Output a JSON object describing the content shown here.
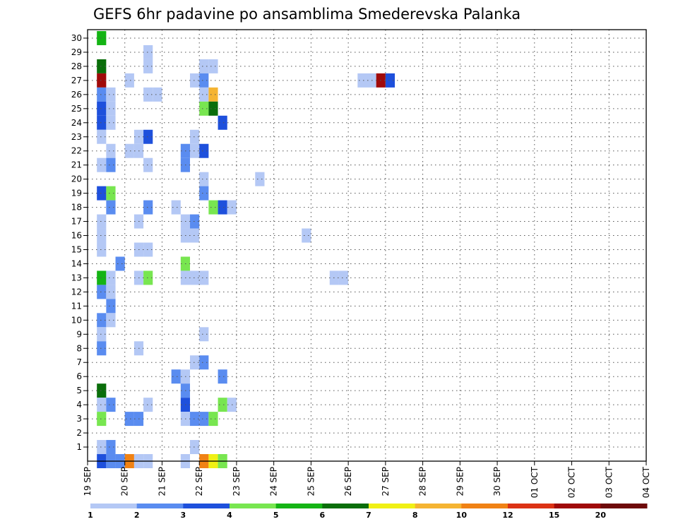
{
  "chart_data": {
    "type": "heatmap",
    "title": "GEFS 6hr padavine po ansamblima Smederevska Palanka",
    "xlabel": "",
    "ylabel": "",
    "x_tick_labels": [
      "19 SEP",
      "20 SEP",
      "21 SEP",
      "22 SEP",
      "23 SEP",
      "24 SEP",
      "25 SEP",
      "26 SEP",
      "27 SEP",
      "28 SEP",
      "29 SEP",
      "30 SEP",
      "01 OCT",
      "02 OCT",
      "03 OCT",
      "04 OCT"
    ],
    "y_tick_labels": [
      "1",
      "2",
      "3",
      "4",
      "5",
      "6",
      "7",
      "8",
      "9",
      "10",
      "11",
      "12",
      "13",
      "14",
      "15",
      "16",
      "17",
      "18",
      "19",
      "20",
      "21",
      "22",
      "23",
      "24",
      "25",
      "26",
      "27",
      "28",
      "29",
      "30"
    ],
    "y_range": [
      0,
      30
    ],
    "steps_per_day": 4,
    "grid": true,
    "colorbar": {
      "labels": [
        "1",
        "2",
        "3",
        "4",
        "5",
        "6",
        "7",
        "8",
        "10",
        "12",
        "15",
        "20"
      ],
      "colors": [
        "#b4c8f5",
        "#5a8cf0",
        "#1e50dc",
        "#78e650",
        "#14b414",
        "#0a6e0a",
        "#f0f014",
        "#f5b432",
        "#f08214",
        "#dc3214",
        "#a00a0a",
        "#6e0a0a"
      ]
    },
    "cells": [
      [
        30,
        1,
        5
      ],
      [
        29,
        6,
        1
      ],
      [
        28,
        1,
        6
      ],
      [
        28,
        6,
        1
      ],
      [
        28,
        12,
        1
      ],
      [
        28,
        13,
        1
      ],
      [
        27,
        1,
        11
      ],
      [
        27,
        4,
        1
      ],
      [
        27,
        11,
        1
      ],
      [
        27,
        12,
        2
      ],
      [
        27,
        29,
        1
      ],
      [
        27,
        30,
        1
      ],
      [
        27,
        31,
        11
      ],
      [
        27,
        32,
        3
      ],
      [
        26,
        1,
        2
      ],
      [
        26,
        2,
        1
      ],
      [
        26,
        6,
        1
      ],
      [
        26,
        7,
        1
      ],
      [
        26,
        12,
        1
      ],
      [
        26,
        13,
        8
      ],
      [
        25,
        1,
        3
      ],
      [
        25,
        2,
        1
      ],
      [
        25,
        12,
        4
      ],
      [
        25,
        13,
        6
      ],
      [
        24,
        1,
        3
      ],
      [
        24,
        2,
        1
      ],
      [
        24,
        14,
        3
      ],
      [
        23,
        1,
        1
      ],
      [
        23,
        5,
        1
      ],
      [
        23,
        6,
        3
      ],
      [
        23,
        11,
        1
      ],
      [
        22,
        2,
        1
      ],
      [
        22,
        4,
        1
      ],
      [
        22,
        5,
        1
      ],
      [
        22,
        10,
        2
      ],
      [
        22,
        11,
        1
      ],
      [
        22,
        12,
        3
      ],
      [
        21,
        1,
        1
      ],
      [
        21,
        2,
        2
      ],
      [
        21,
        6,
        1
      ],
      [
        21,
        10,
        2
      ],
      [
        20,
        12,
        1
      ],
      [
        20,
        18,
        1
      ],
      [
        19,
        1,
        3
      ],
      [
        19,
        2,
        4
      ],
      [
        19,
        12,
        2
      ],
      [
        18,
        2,
        2
      ],
      [
        18,
        6,
        2
      ],
      [
        18,
        9,
        1
      ],
      [
        18,
        13,
        4
      ],
      [
        18,
        14,
        3
      ],
      [
        18,
        15,
        1
      ],
      [
        17,
        1,
        1
      ],
      [
        17,
        5,
        1
      ],
      [
        17,
        10,
        1
      ],
      [
        17,
        11,
        2
      ],
      [
        16,
        1,
        1
      ],
      [
        16,
        10,
        1
      ],
      [
        16,
        11,
        1
      ],
      [
        16,
        23,
        1
      ],
      [
        15,
        1,
        1
      ],
      [
        15,
        5,
        1
      ],
      [
        15,
        6,
        1
      ],
      [
        14,
        3,
        2
      ],
      [
        14,
        10,
        4
      ],
      [
        13,
        1,
        5
      ],
      [
        13,
        2,
        1
      ],
      [
        13,
        5,
        1
      ],
      [
        13,
        6,
        4
      ],
      [
        13,
        10,
        1
      ],
      [
        13,
        11,
        1
      ],
      [
        13,
        12,
        1
      ],
      [
        13,
        26,
        1
      ],
      [
        13,
        27,
        1
      ],
      [
        12,
        1,
        2
      ],
      [
        12,
        2,
        1
      ],
      [
        11,
        2,
        2
      ],
      [
        10,
        1,
        2
      ],
      [
        10,
        2,
        1
      ],
      [
        9,
        1,
        1
      ],
      [
        9,
        12,
        1
      ],
      [
        8,
        1,
        2
      ],
      [
        8,
        5,
        1
      ],
      [
        7,
        11,
        1
      ],
      [
        7,
        12,
        2
      ],
      [
        6,
        9,
        2
      ],
      [
        6,
        10,
        1
      ],
      [
        6,
        14,
        2
      ],
      [
        5,
        1,
        6
      ],
      [
        5,
        10,
        2
      ],
      [
        4,
        1,
        1
      ],
      [
        4,
        2,
        2
      ],
      [
        4,
        6,
        1
      ],
      [
        4,
        10,
        3
      ],
      [
        4,
        14,
        4
      ],
      [
        4,
        15,
        1
      ],
      [
        3,
        1,
        4
      ],
      [
        3,
        4,
        2
      ],
      [
        3,
        5,
        2
      ],
      [
        3,
        10,
        1
      ],
      [
        3,
        11,
        2
      ],
      [
        3,
        12,
        2
      ],
      [
        3,
        13,
        4
      ],
      [
        1,
        1,
        1
      ],
      [
        1,
        2,
        2
      ],
      [
        1,
        11,
        1
      ],
      [
        0,
        1,
        3
      ],
      [
        0,
        2,
        2
      ],
      [
        0,
        3,
        2
      ],
      [
        0,
        4,
        9
      ],
      [
        0,
        5,
        1
      ],
      [
        0,
        6,
        1
      ],
      [
        0,
        10,
        1
      ],
      [
        0,
        12,
        9
      ],
      [
        0,
        13,
        7
      ],
      [
        0,
        14,
        4
      ]
    ]
  }
}
